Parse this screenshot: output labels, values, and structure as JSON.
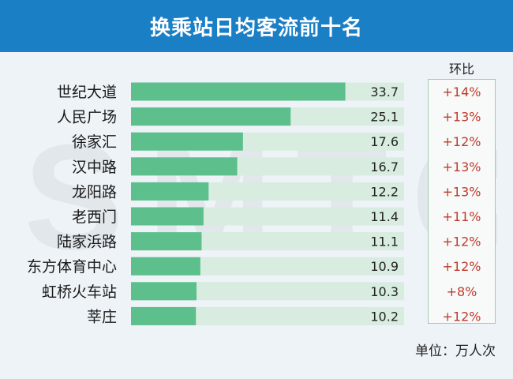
{
  "title": "换乘站日均客流前十名",
  "watermark": "SMTCC",
  "change_label": "环比",
  "unit_label": "单位：万人次",
  "colors": {
    "header": "#1a7fc4",
    "bar": "#5cbf8c",
    "track": "#d8ece0",
    "change_text": "#c0392b"
  },
  "chart_data": {
    "type": "bar",
    "orientation": "horizontal",
    "categories": [
      "世纪大道",
      "人民广场",
      "徐家汇",
      "汉中路",
      "龙阳路",
      "老西门",
      "陆家浜路",
      "东方体育中心",
      "虹桥火车站",
      "莘庄"
    ],
    "values": [
      33.7,
      25.1,
      17.6,
      16.7,
      12.2,
      11.4,
      11.1,
      10.9,
      10.3,
      10.2
    ],
    "value_labels": [
      "33.7",
      "25.1",
      "17.6",
      "16.7",
      "12.2",
      "11.4",
      "11.1",
      "10.9",
      "10.3",
      "10.2"
    ],
    "changes": [
      "+14%",
      "+13%",
      "+12%",
      "+13%",
      "+13%",
      "+11%",
      "+12%",
      "+12%",
      "+8%",
      "+12%"
    ],
    "xlim": [
      0,
      34
    ]
  }
}
